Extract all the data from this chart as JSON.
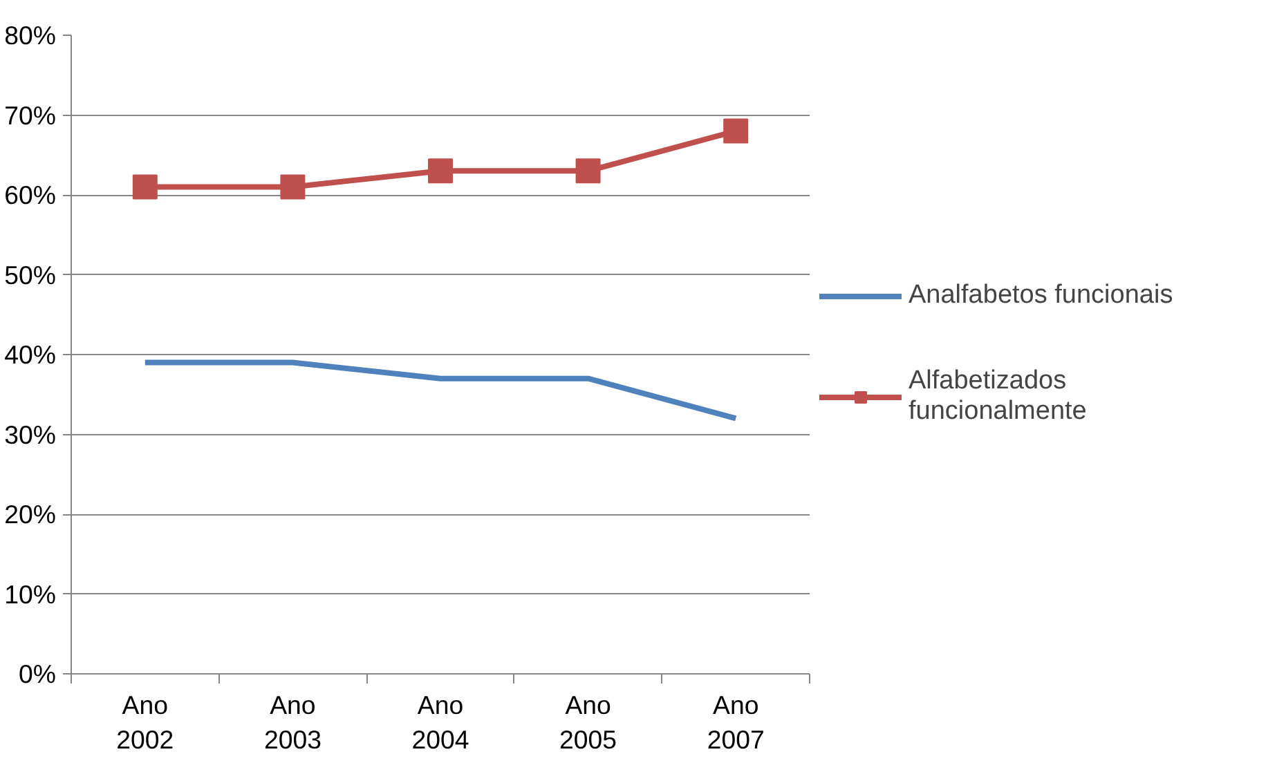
{
  "chart_data": {
    "type": "line",
    "categories": [
      "Ano 2002",
      "Ano 2003",
      "Ano 2004",
      "Ano 2005",
      "Ano 2007"
    ],
    "series": [
      {
        "name": "Analfabetos funcionais",
        "color": "#4f81bd",
        "values": [
          39,
          39,
          37,
          37,
          32
        ],
        "marker": "none"
      },
      {
        "name": "Alfabetizados funcionalmente",
        "color": "#c0504d",
        "values": [
          61,
          61,
          63,
          63,
          68
        ],
        "marker": "square"
      }
    ],
    "ylim": [
      0,
      80
    ],
    "yticks": [
      {
        "value": 0,
        "label": "0%"
      },
      {
        "value": 10,
        "label": "10%"
      },
      {
        "value": 20,
        "label": "20%"
      },
      {
        "value": 30,
        "label": "30%"
      },
      {
        "value": 40,
        "label": "40%"
      },
      {
        "value": 50,
        "label": "50%"
      },
      {
        "value": 60,
        "label": "60%"
      },
      {
        "value": 70,
        "label": "70%"
      },
      {
        "value": 80,
        "label": "80%"
      }
    ],
    "grid": "y",
    "legend": "right",
    "line_style": "solid"
  }
}
